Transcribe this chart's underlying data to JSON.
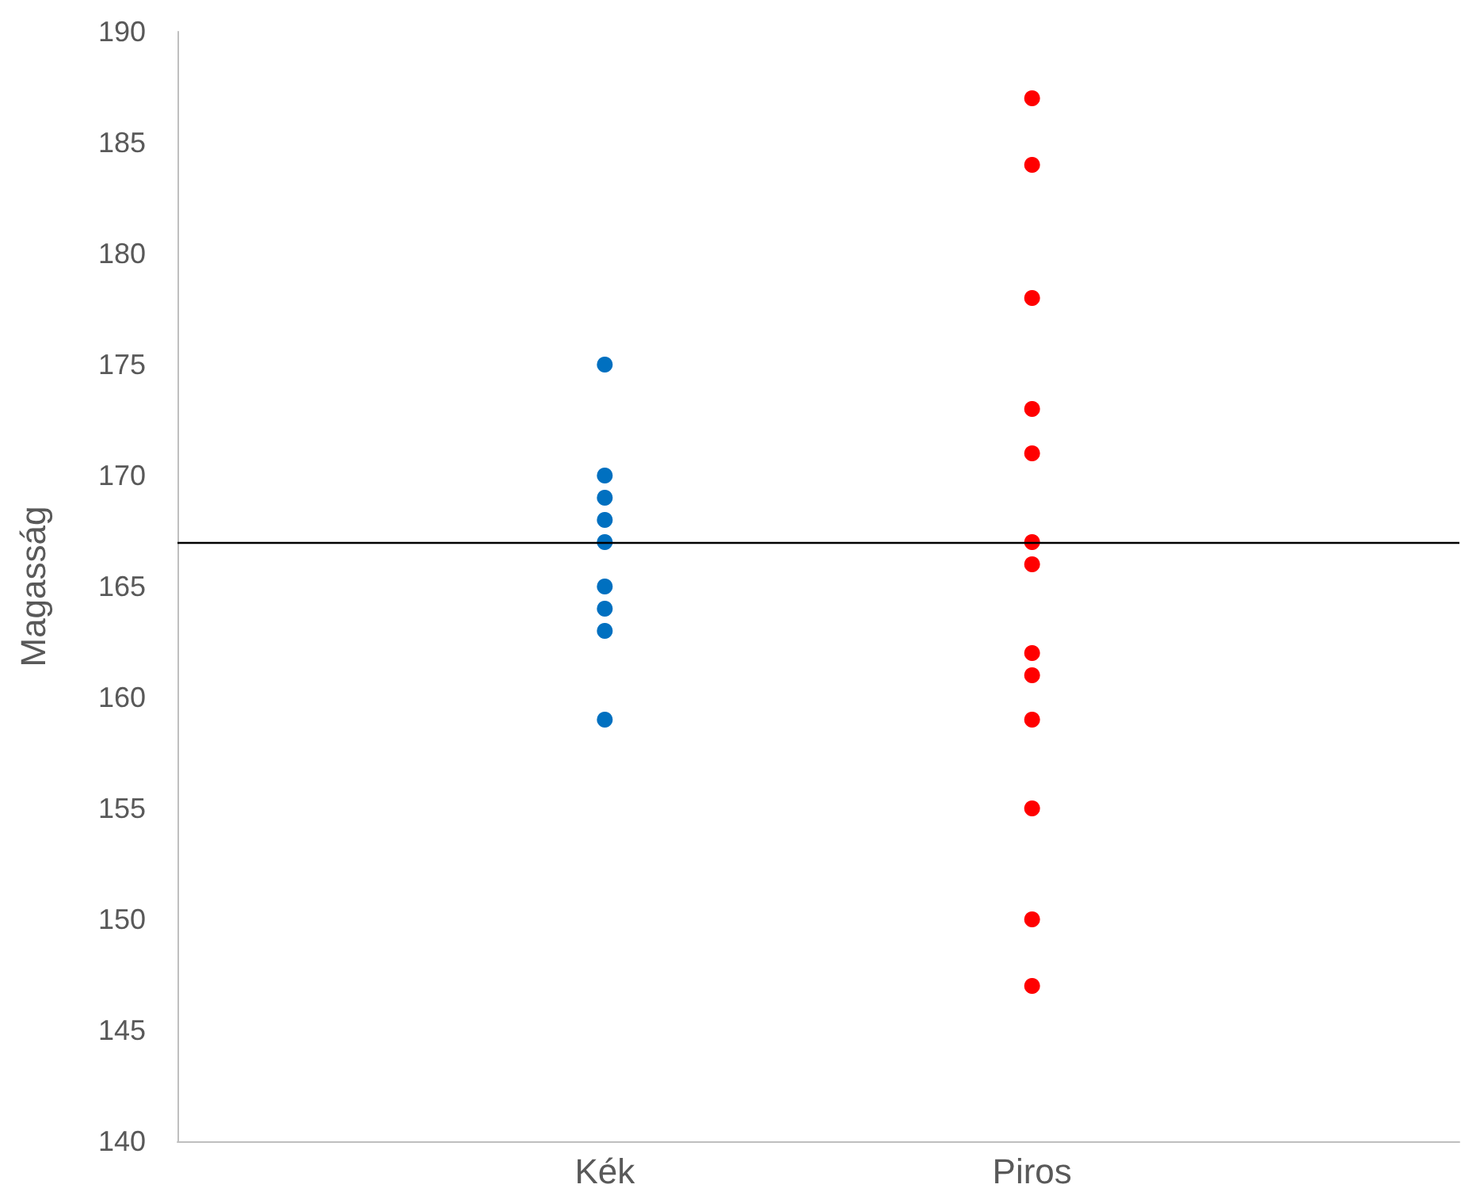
{
  "chart_data": {
    "type": "scatter",
    "ylabel": "Magasság",
    "categories": [
      "Kék",
      "Piros"
    ],
    "series": [
      {
        "color": "#0070c0",
        "x": [
          "Kék",
          "Kék",
          "Kék",
          "Kék",
          "Kék",
          "Kék",
          "Kék",
          "Kék",
          "Kék"
        ],
        "values": [
          175,
          170,
          169,
          168,
          167,
          165,
          164,
          163,
          159
        ]
      },
      {
        "color": "#ff0000",
        "x": [
          "Piros",
          "Piros",
          "Piros",
          "Piros",
          "Piros",
          "Piros",
          "Piros",
          "Piros",
          "Piros",
          "Piros",
          "Piros",
          "Piros",
          "Piros"
        ],
        "values": [
          187,
          184,
          178,
          173,
          171,
          167,
          166,
          162,
          161,
          159,
          155,
          150,
          147
        ]
      }
    ],
    "ylim": [
      140,
      190
    ],
    "yticks": [
      140,
      145,
      150,
      155,
      160,
      165,
      170,
      175,
      180,
      185,
      190
    ],
    "ref_lines": [
      {
        "axis": "y",
        "value": 167,
        "color": "#000000"
      }
    ],
    "grid": false,
    "marker": "circle"
  }
}
